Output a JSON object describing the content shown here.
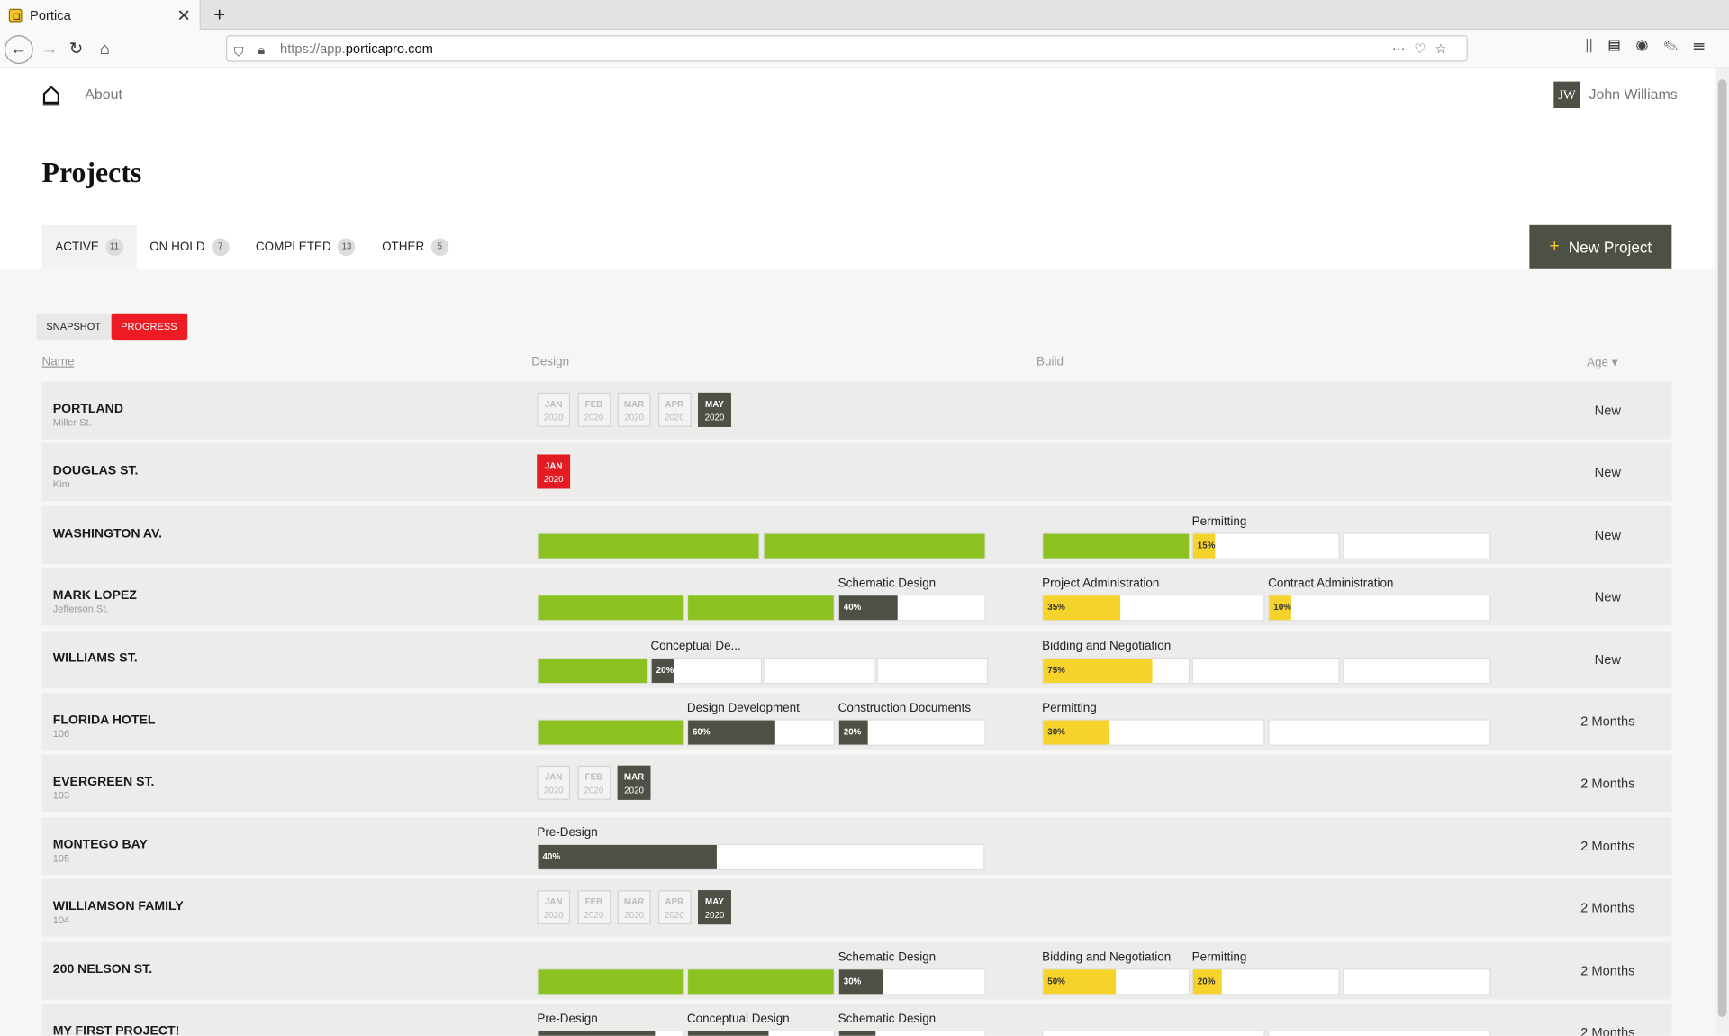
{
  "browser": {
    "tab_title": "Portica",
    "tab_close": "✕",
    "new_tab": "+",
    "url_prefix": "https://app.",
    "url_domain": "porticapro.com"
  },
  "nav": {
    "about": "About",
    "avatar": "JW",
    "user_name": "John Williams"
  },
  "page_title": "Projects",
  "tabs": [
    {
      "label": "ACTIVE",
      "count": "11"
    },
    {
      "label": "ON HOLD",
      "count": "7"
    },
    {
      "label": "COMPLETED",
      "count": "13"
    },
    {
      "label": "OTHER",
      "count": "5"
    }
  ],
  "new_project": {
    "plus": "+",
    "label": "New Project"
  },
  "views": {
    "snapshot": "SNAPSHOT",
    "progress": "PROGRESS"
  },
  "columns": {
    "name": "Name",
    "design": "Design",
    "build": "Build",
    "age": "Age ▾"
  },
  "rows": [
    {
      "name": "PORTLAND",
      "sub": "Miller St.",
      "age": "New",
      "months": [
        [
          "JAN",
          "2020"
        ],
        [
          "FEB",
          "2020"
        ],
        [
          "MAR",
          "2020"
        ],
        [
          "APR",
          "2020"
        ],
        [
          "MAY",
          "2020"
        ]
      ],
      "current": 4
    },
    {
      "name": "DOUGLAS ST.",
      "sub": "Kim",
      "age": "New",
      "months": [
        [
          "JAN",
          "2020"
        ]
      ],
      "current": 0,
      "red": true
    },
    {
      "name": "WASHINGTON AV.",
      "sub": "",
      "age": "New",
      "labels": {
        "b2": "Permitting"
      },
      "pcts": {
        "b2": "15%"
      }
    },
    {
      "name": "MARK LOPEZ",
      "sub": "Jefferson St.",
      "age": "New",
      "labels": {
        "d3": "Schematic Design",
        "b1": "Project Administration",
        "b2": "Contract Administration"
      },
      "pcts": {
        "d3": "40%",
        "b1": "35%",
        "b2": "10%"
      }
    },
    {
      "name": "WILLIAMS ST.",
      "sub": "",
      "age": "New",
      "labels": {
        "d2": "Conceptual De...",
        "b1": "Bidding and Negotiation"
      },
      "pcts": {
        "d2": "20%",
        "b1": "75%"
      }
    },
    {
      "name": "FLORIDA HOTEL",
      "sub": "106",
      "age": "2 Months",
      "labels": {
        "d2": "Design Development",
        "d3": "Construction Documents",
        "b1": "Permitting"
      },
      "pcts": {
        "d2": "60%",
        "d3": "20%",
        "b1": "30%"
      }
    },
    {
      "name": "EVERGREEN ST.",
      "sub": "103",
      "age": "2 Months",
      "months": [
        [
          "JAN",
          "2020"
        ],
        [
          "FEB",
          "2020"
        ],
        [
          "MAR",
          "2020"
        ]
      ],
      "current": 2
    },
    {
      "name": "MONTEGO BAY",
      "sub": "105",
      "age": "2 Months",
      "labels": {
        "d1": "Pre-Design"
      },
      "pcts": {
        "d1": "40%"
      }
    },
    {
      "name": "WILLIAMSON FAMILY",
      "sub": "104",
      "age": "2 Months",
      "months": [
        [
          "JAN",
          "2020"
        ],
        [
          "FEB",
          "2020"
        ],
        [
          "MAR",
          "2020"
        ],
        [
          "APR",
          "2020"
        ],
        [
          "MAY",
          "2020"
        ]
      ],
      "current": 4
    },
    {
      "name": "200 NELSON ST.",
      "sub": "",
      "age": "2 Months",
      "labels": {
        "d3": "Schematic Design",
        "b1": "Bidding and Negotiation",
        "b2": "Permitting"
      },
      "pcts": {
        "d3": "30%",
        "b1": "50%",
        "b2": "20%"
      }
    },
    {
      "name": "MY FIRST PROJECT!",
      "sub": "",
      "age": "2 Months",
      "labels": {
        "d1": "Pre-Design",
        "d2": "Conceptual Design",
        "d3": "Schematic Design"
      }
    }
  ],
  "progress": {
    "WASHINGTON AV.": {
      "design": [
        {
          "f": 1,
          "c": "g"
        },
        {
          "f": 1,
          "c": "g"
        }
      ],
      "build": [
        {
          "f": 1,
          "c": "g"
        },
        {
          "f": 0.15,
          "c": "y"
        },
        {
          "f": 0,
          "c": "y"
        }
      ]
    },
    "MARK LOPEZ": {
      "design": [
        {
          "f": 1,
          "c": "g"
        },
        {
          "f": 1,
          "c": "g"
        },
        {
          "f": 0.4,
          "c": "d"
        }
      ],
      "build": [
        {
          "f": 0.35,
          "c": "y"
        },
        {
          "f": 0.1,
          "c": "y"
        }
      ]
    },
    "WILLIAMS ST.": {
      "design": [
        {
          "f": 1,
          "c": "g"
        },
        {
          "f": 0.2,
          "c": "d"
        },
        {
          "f": 0,
          "c": "d"
        },
        {
          "f": 0,
          "c": "d"
        }
      ],
      "build": [
        {
          "f": 0.75,
          "c": "y"
        },
        {
          "f": 0,
          "c": "y"
        },
        {
          "f": 0,
          "c": "y"
        }
      ]
    },
    "FLORIDA HOTEL": {
      "design": [
        {
          "f": 1,
          "c": "g"
        },
        {
          "f": 0.6,
          "c": "d"
        },
        {
          "f": 0.2,
          "c": "d"
        }
      ],
      "build": [
        {
          "f": 0.3,
          "c": "y"
        },
        {
          "f": 0,
          "c": "y"
        }
      ]
    },
    "MONTEGO BAY": {
      "design": [
        {
          "f": 0.4,
          "c": "d"
        }
      ],
      "build": []
    },
    "200 NELSON ST.": {
      "design": [
        {
          "f": 1,
          "c": "g"
        },
        {
          "f": 1,
          "c": "g"
        },
        {
          "f": 0.3,
          "c": "d"
        }
      ],
      "build": [
        {
          "f": 0.5,
          "c": "y"
        },
        {
          "f": 0.2,
          "c": "y"
        },
        {
          "f": 0,
          "c": "y"
        }
      ]
    },
    "MY FIRST PROJECT!": {
      "design": [
        {
          "f": 0.8,
          "c": "d"
        },
        {
          "f": 0.55,
          "c": "d"
        },
        {
          "f": 0.25,
          "c": "d"
        }
      ],
      "build": [
        {
          "f": 0,
          "c": "y"
        },
        {
          "f": 0,
          "c": "y"
        }
      ]
    }
  }
}
